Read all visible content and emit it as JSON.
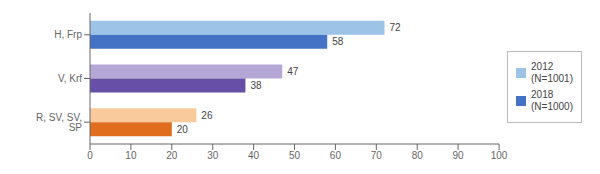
{
  "chart_data": {
    "type": "bar",
    "orientation": "horizontal",
    "categories": [
      "H, Frp",
      "V, Krf",
      "R, SV, SV, SP"
    ],
    "series": [
      {
        "name": "2012\n(N=1001)",
        "color": "#9dc3e6",
        "colors": [
          "#9dc3e6",
          "#b4a7d6",
          "#f9cb9c"
        ],
        "values": [
          72,
          47,
          26
        ]
      },
      {
        "name": "2018\n(N=1000)",
        "color": "#4472c4",
        "colors": [
          "#4472c4",
          "#674ea7",
          "#e06c1e"
        ],
        "values": [
          58,
          38,
          20
        ]
      }
    ],
    "xlim": [
      0,
      100
    ],
    "xticks": [
      0,
      10,
      20,
      30,
      40,
      50,
      60,
      70,
      80,
      90,
      100
    ],
    "grid": false,
    "legend": "right",
    "data_labels": true
  }
}
